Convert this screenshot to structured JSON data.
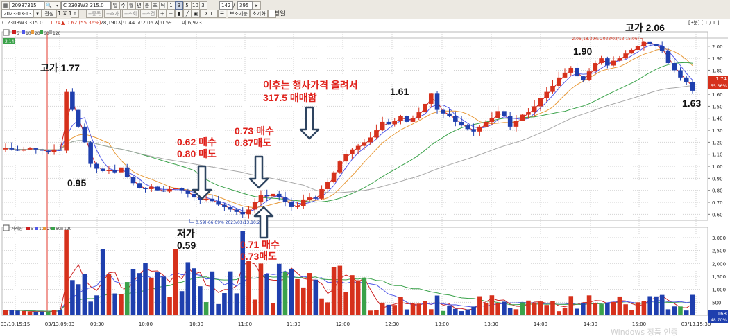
{
  "toolbar": {
    "code": "20987315",
    "name_field": "C 2303W3 315.0",
    "periods": [
      "일",
      "주",
      "월",
      "년",
      "분",
      "초",
      "틱",
      "1",
      "3",
      "5",
      "10",
      "3"
    ],
    "count_value": "142",
    "count_total": "395",
    "row2": {
      "date": "2023-03-13",
      "lookup_button": "관심",
      "scale_label": "1 X 1",
      "add_buttons": [
        "+종목",
        "+추가",
        "+조회",
        "+조건"
      ],
      "zoom": "X 1",
      "mode_button": "보조기능",
      "reset_button": "초기화",
      "same_day_checkbox": "당일"
    },
    "page_indicator": "[3분] [ 1 / 1 ]"
  },
  "info_line": {
    "name": "C 2303W3 315.0",
    "price": "1.74",
    "change": "▲ 0.62 (55.36%)",
    "volume": "128,190",
    "ohlc": "시:1.44 고:2.06 저:0.59",
    "amount": "미:6,923"
  },
  "price_pane": {
    "legend": [
      "5",
      "10",
      "20",
      "60",
      "120"
    ],
    "y_ticks": [
      "2.00",
      "1.90",
      "1.80",
      "1.70",
      "1.60",
      "1.50",
      "1.40",
      "1.30",
      "1.20",
      "1.10",
      "1.00",
      "0.90",
      "0.80",
      "0.70",
      "0.60"
    ],
    "current_badge": "1.74",
    "current_pct_badge": "55.36%",
    "corner_badge": "2.14",
    "high_callout": "2.06(18.39% 2023/03/13,15:06)",
    "low_callout": "0.59(-66.09% 2023/03/13,10:27)"
  },
  "volume_pane": {
    "legend_title": "거래량",
    "legend": [
      "5",
      "10",
      "20",
      "60",
      "120"
    ],
    "y_ticks": [
      "3,000",
      "2,500",
      "2,000",
      "1,500",
      "1,000",
      "500"
    ],
    "current_badge": "168",
    "current_pct_badge": "48.70%"
  },
  "x_ticks": [
    "03/10,15:15",
    "03/13,09:03",
    "09:30",
    "10:00",
    "10:30",
    "11:00",
    "11:30",
    "12:00",
    "12:30",
    "13:00",
    "13:30",
    "14:00",
    "14:30",
    "15:00",
    "03/13,15:30"
  ],
  "watermark": "Windows 정품 인증",
  "annotations": {
    "high_open": "고가 1.77",
    "dip_low": "0.95",
    "buy1_line1": "0.62 매수",
    "buy1_line2": "0.80 매도",
    "low_line1": "저가",
    "low_line2": "0.59",
    "buy2_line1": "0.73 매수",
    "buy2_line2": "0.87매도",
    "buy3_line1": "0.71 매수",
    "buy3_line2": "0.73매도",
    "note_line1": "이후는 행사가격 올려서",
    "note_line2": "317.5 매매함",
    "peak_mid": "1.61",
    "peak_late": "1.90",
    "high_day": "고가 2.06",
    "close_val": "1.63"
  },
  "colors": {
    "up": "#d6311c",
    "down": "#1f3fae",
    "ma5": "#cc2020",
    "ma10": "#4f57e8",
    "ma20": "#e89a3a",
    "ma60": "#3aa24a",
    "ma120": "#a8a8a8",
    "arrow": "#2e4460"
  },
  "chart_data": {
    "type": "candlestick",
    "interval": "3min",
    "ylim": [
      0.55,
      2.12
    ],
    "volume_ylim": [
      0,
      3400
    ],
    "x": [
      "03/10,15:15",
      "03/13,09:03",
      "09:30",
      "10:00",
      "10:30",
      "11:00",
      "11:30",
      "12:00",
      "12:30",
      "13:00",
      "13:30",
      "14:00",
      "14:30",
      "15:00",
      "03/13,15:30"
    ],
    "high": 2.06,
    "low": 0.59,
    "last": 1.74,
    "approx_path_close": [
      1.15,
      1.14,
      1.13,
      1.14,
      1.15,
      1.14,
      1.13,
      1.12,
      1.14,
      1.13,
      1.62,
      1.47,
      1.33,
      1.2,
      1.02,
      0.98,
      0.96,
      0.97,
      0.95,
      0.99,
      0.91,
      0.86,
      0.82,
      0.81,
      0.83,
      0.8,
      0.79,
      0.81,
      0.82,
      0.8,
      0.77,
      0.74,
      0.72,
      0.73,
      0.71,
      0.68,
      0.66,
      0.64,
      0.62,
      0.6,
      0.64,
      0.7,
      0.76,
      0.75,
      0.77,
      0.74,
      0.7,
      0.66,
      0.67,
      0.72,
      0.74,
      0.73,
      0.81,
      0.87,
      0.95,
      1.04,
      1.1,
      1.14,
      1.17,
      1.2,
      1.24,
      1.3,
      1.37,
      1.35,
      1.38,
      1.42,
      1.37,
      1.4,
      1.45,
      1.52,
      1.61,
      1.47,
      1.44,
      1.42,
      1.37,
      1.34,
      1.31,
      1.29,
      1.33,
      1.37,
      1.4,
      1.46,
      1.42,
      1.33,
      1.38,
      1.43,
      1.45,
      1.5,
      1.57,
      1.62,
      1.67,
      1.74,
      1.78,
      1.82,
      1.75,
      1.72,
      1.79,
      1.86,
      1.9,
      1.84,
      1.88,
      1.9,
      1.94,
      1.97,
      2.0,
      2.04,
      2.02,
      2.0,
      1.96,
      1.86,
      1.8,
      1.74,
      1.7,
      1.63
    ],
    "series": [
      {
        "name": "5",
        "color": "#cc2020"
      },
      {
        "name": "10",
        "color": "#4f57e8"
      },
      {
        "name": "20",
        "color": "#e89a3a"
      },
      {
        "name": "60",
        "color": "#3aa24a"
      },
      {
        "name": "120",
        "color": "#a8a8a8"
      }
    ]
  }
}
